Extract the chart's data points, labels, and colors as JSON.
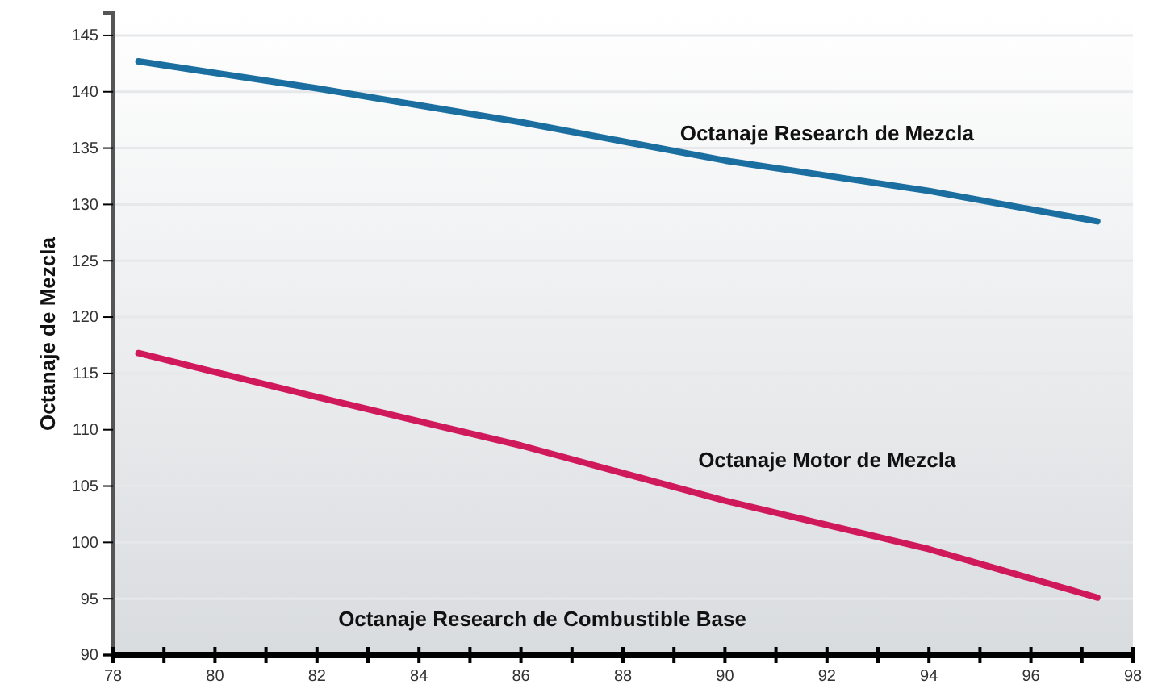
{
  "chart_data": {
    "type": "line",
    "xlabel": "Octanaje Research de Combustible Base",
    "ylabel": "Octanaje de Mezcla",
    "x": [
      78.5,
      82,
      86,
      90,
      94,
      97.3
    ],
    "series": [
      {
        "name": "Octanaje Research de Mezcla",
        "color": "#1a6fa0",
        "values": [
          142.7,
          140.3,
          137.3,
          133.9,
          131.2,
          128.5
        ]
      },
      {
        "name": "Octanaje Motor de Mezcla",
        "color": "#d0195a",
        "values": [
          116.8,
          112.9,
          108.6,
          103.7,
          99.4,
          95.1
        ]
      }
    ],
    "xlim": [
      78,
      98
    ],
    "xticks": [
      78,
      {
        "value": 79,
        "label": null
      },
      80,
      {
        "value": 81,
        "label": null
      },
      82,
      {
        "value": 83,
        "label": null
      },
      84,
      {
        "value": 85,
        "label": null
      },
      86,
      {
        "value": 87,
        "label": null
      },
      88,
      {
        "value": 89,
        "label": null
      },
      90,
      {
        "value": 91,
        "label": null
      },
      92,
      {
        "value": 93,
        "label": null
      },
      94,
      {
        "value": 95,
        "label": null
      },
      96,
      {
        "value": 97,
        "label": null
      },
      98
    ],
    "ylim": [
      90,
      147
    ],
    "yticks": [
      90,
      95,
      100,
      105,
      110,
      115,
      120,
      125,
      130,
      135,
      140,
      145
    ],
    "grid": "y",
    "legend": false,
    "marker": "none",
    "line_style": "solid"
  }
}
